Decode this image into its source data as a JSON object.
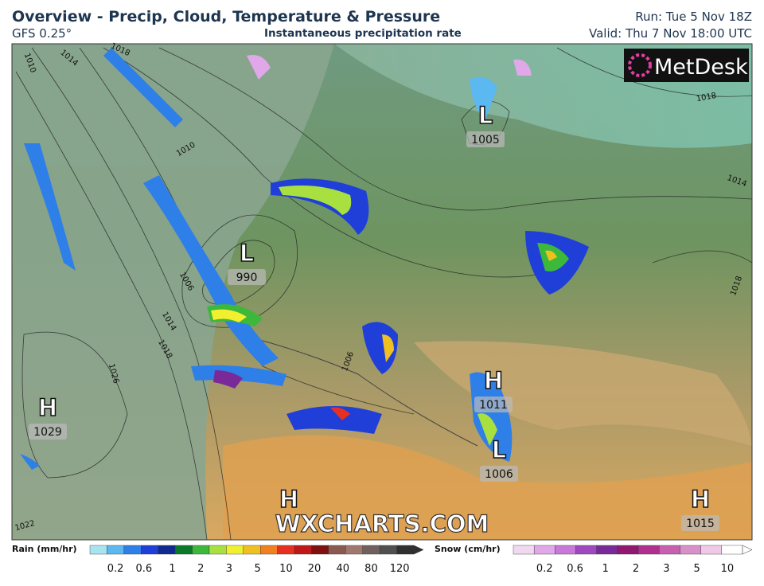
{
  "header": {
    "title": "Overview - Precip, Cloud, Temperature & Pressure",
    "model": "GFS 0.25°",
    "subtitle": "Instantaneous precipitation rate",
    "run": "Run: Tue 5 Nov 18Z",
    "valid": "Valid: Thu 7 Nov 18:00 UTC"
  },
  "logo": "MetDesk",
  "watermark": "WXCHARTS.COM",
  "pressure_centers": [
    {
      "letter": "L",
      "value": "1005"
    },
    {
      "letter": "L",
      "value": "990"
    },
    {
      "letter": "H",
      "value": "1029"
    },
    {
      "letter": "H",
      "value": "1011"
    },
    {
      "letter": "L",
      "value": "1006"
    },
    {
      "letter": "H"
    },
    {
      "letter": "H",
      "value": "1015"
    }
  ],
  "isobar_labels": [
    "1010",
    "1014",
    "1018",
    "1010",
    "1006",
    "1014",
    "1018",
    "1026",
    "1022",
    "1018",
    "1014",
    "1018",
    "1006"
  ],
  "legends": {
    "rain": {
      "title": "Rain (mm/hr)",
      "ticks": [
        "0.2",
        "0.6",
        "1",
        "2",
        "3",
        "5",
        "10",
        "20",
        "40",
        "80",
        "120"
      ],
      "colors": [
        "#a8e4f0",
        "#5bb8f0",
        "#2f7fe8",
        "#1f3fd8",
        "#102a90",
        "#0a7a2a",
        "#3cb83a",
        "#a8e040",
        "#f0f030",
        "#f0c020",
        "#f08020",
        "#e83020",
        "#c01818",
        "#801010",
        "#8a5a50",
        "#a07870",
        "#706060",
        "#505050",
        "#303030"
      ]
    },
    "snow": {
      "title": "Snow (cm/hr)",
      "ticks": [
        "0.2",
        "0.6",
        "1",
        "2",
        "3",
        "5",
        "10"
      ],
      "colors": [
        "#f0d8f0",
        "#e0a8e8",
        "#c878d8",
        "#a048c0",
        "#7a2a98",
        "#901870",
        "#b03090",
        "#c860b0",
        "#d890c8",
        "#f0c8e8",
        "#ffffff"
      ]
    }
  }
}
